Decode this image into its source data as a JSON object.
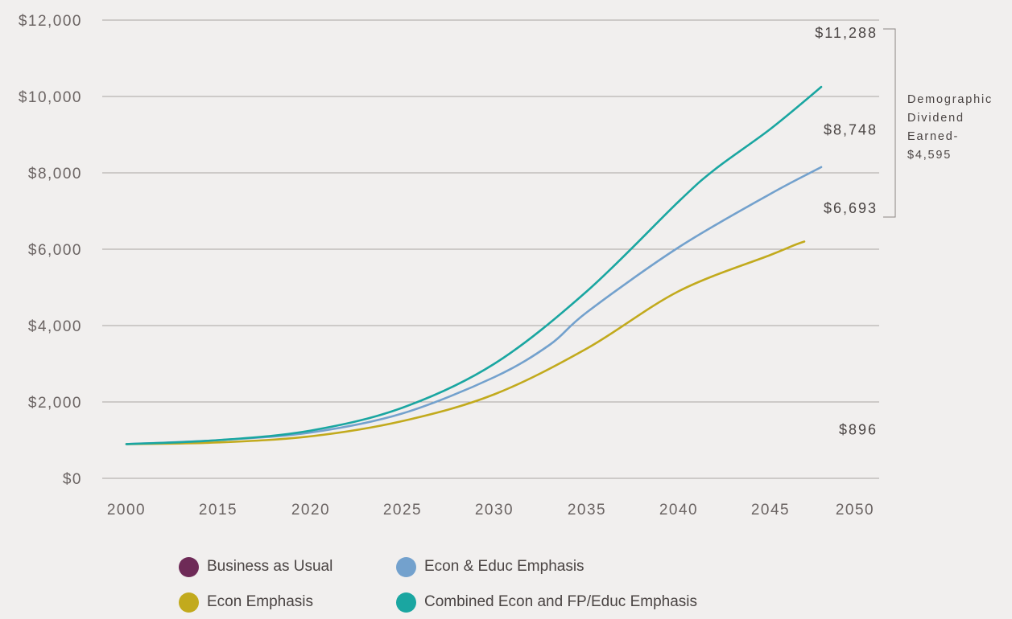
{
  "chart_data": {
    "type": "line",
    "title": "",
    "xlabel": "",
    "ylabel": "",
    "x_ticks": [
      "2000",
      "2015",
      "2020",
      "2025",
      "2030",
      "2035",
      "2040",
      "2045",
      "2050"
    ],
    "y_ticks": [
      "$0",
      "$2,000",
      "$4,000",
      "$6,000",
      "$8,000",
      "$10,000",
      "$12,000"
    ],
    "ylim": [
      0,
      12000
    ],
    "grid": true,
    "legend_position": "bottom",
    "series": [
      {
        "name": "Business as Usual",
        "color": "#6e2a57",
        "end_label": "$896",
        "points": [
          [
            2000,
            896
          ],
          [
            2050,
            896
          ]
        ]
      },
      {
        "name": "Econ Emphasis",
        "color": "#c2aa1d",
        "end_label": "$6,693",
        "points": [
          [
            2000,
            896
          ],
          [
            2015,
            940
          ],
          [
            2020,
            1100
          ],
          [
            2025,
            1500
          ],
          [
            2030,
            2200
          ],
          [
            2035,
            3400
          ],
          [
            2040,
            4900
          ],
          [
            2045,
            5850
          ],
          [
            2047,
            6200
          ],
          [
            2049,
            6400
          ],
          [
            2050,
            6693
          ]
        ]
      },
      {
        "name": "Econ & Educ Emphasis",
        "color": "#73a1cd",
        "end_label": "$8,748",
        "points": [
          [
            2000,
            896
          ],
          [
            2015,
            1000
          ],
          [
            2020,
            1200
          ],
          [
            2025,
            1700
          ],
          [
            2030,
            2650
          ],
          [
            2033,
            3500
          ],
          [
            2035,
            4350
          ],
          [
            2040,
            6050
          ],
          [
            2045,
            7450
          ],
          [
            2048,
            8150
          ],
          [
            2049,
            8400
          ],
          [
            2050,
            8748
          ]
        ]
      },
      {
        "name": "Combined Econ and FP/Educ Emphasis",
        "color": "#1aa6a1",
        "end_label": "$11,288",
        "points": [
          [
            2000,
            896
          ],
          [
            2015,
            1000
          ],
          [
            2020,
            1250
          ],
          [
            2025,
            1850
          ],
          [
            2030,
            3000
          ],
          [
            2035,
            4900
          ],
          [
            2040,
            7250
          ],
          [
            2042,
            8100
          ],
          [
            2045,
            9150
          ],
          [
            2048,
            10250
          ],
          [
            2049,
            10650
          ],
          [
            2050,
            11288
          ]
        ]
      }
    ],
    "annotation": {
      "lines": [
        "Demographic",
        "Dividend",
        "Earned-",
        "$4,595"
      ]
    }
  }
}
